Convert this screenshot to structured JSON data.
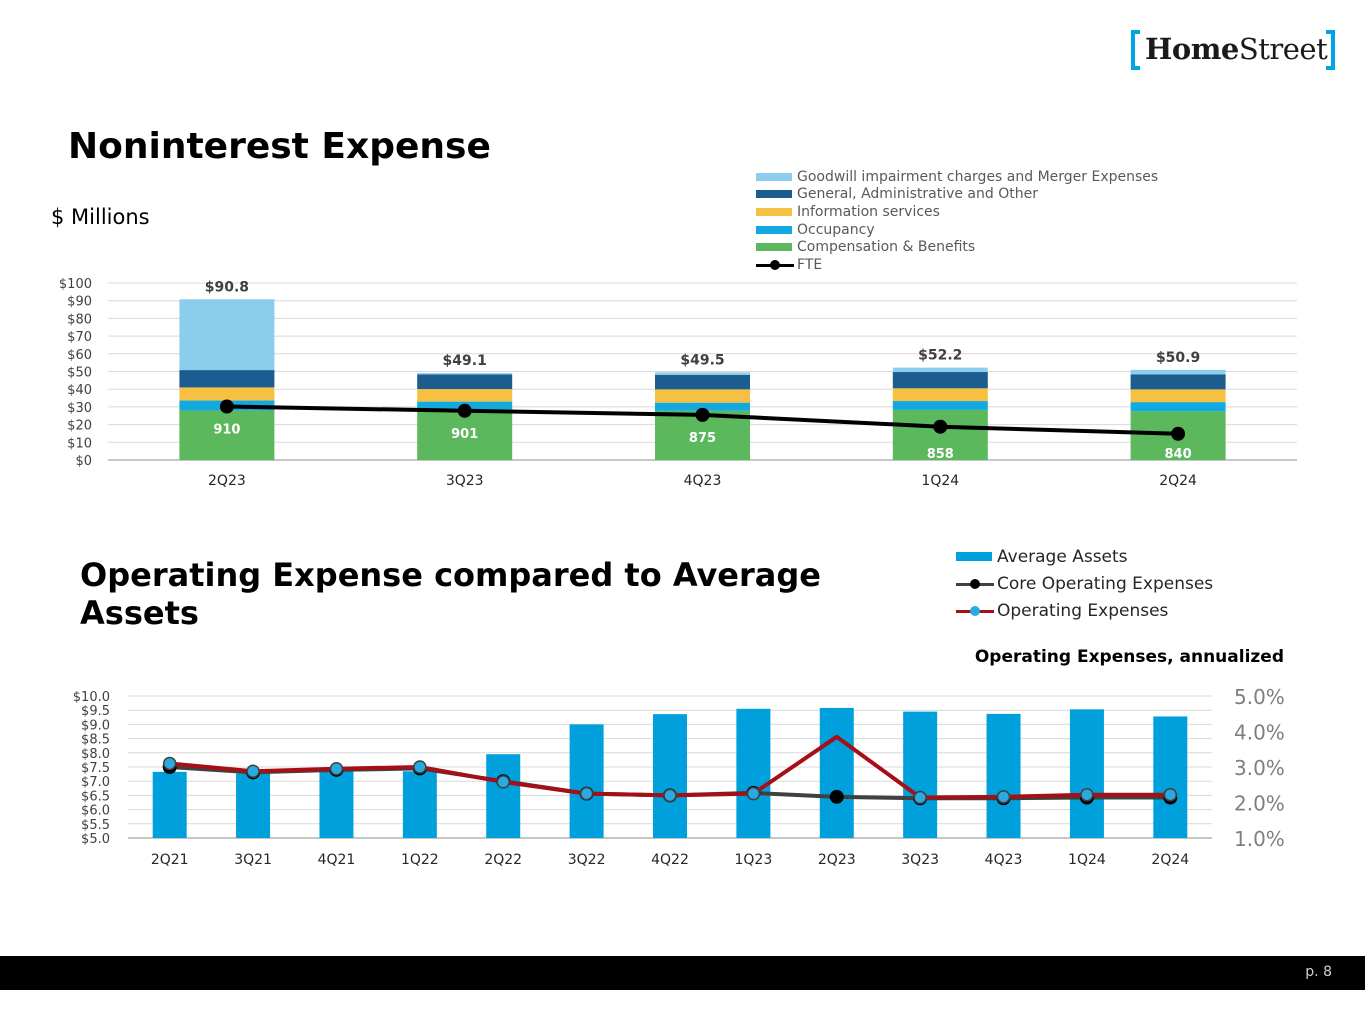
{
  "brand": {
    "logo_text_bold": "Home",
    "logo_text_regular": "Street",
    "accent_color": "#00a5e3"
  },
  "slide": {
    "title": "Noninterest Expense",
    "units": "$ Millions",
    "title2": "Operating Expense compared to Average Assets",
    "subtitle2": "Operating Expenses, annualized",
    "page_number": "p. 8"
  },
  "chart_data": [
    {
      "type": "bar",
      "stacked": true,
      "title": "Noninterest Expense",
      "ylabel": "$ Millions",
      "ylim": [
        0,
        100
      ],
      "yticks": [
        0,
        10,
        20,
        30,
        40,
        50,
        60,
        70,
        80,
        90,
        100
      ],
      "ytick_labels": [
        "$0",
        "$10",
        "$20",
        "$30",
        "$40",
        "$50",
        "$60",
        "$70",
        "$80",
        "$90",
        "$100"
      ],
      "categories": [
        "2Q23",
        "3Q23",
        "4Q23",
        "1Q24",
        "2Q24"
      ],
      "totals": [
        90.8,
        49.1,
        49.5,
        52.2,
        50.9
      ],
      "total_labels": [
        "$90.8",
        "$49.1",
        "$49.5",
        "$52.2",
        "$50.9"
      ],
      "series": [
        {
          "name": "Compensation & Benefits",
          "color": "#5cb85c",
          "values": [
            28.0,
            28.8,
            27.8,
            28.3,
            27.5
          ]
        },
        {
          "name": "Occupancy",
          "color": "#11a9df",
          "values": [
            5.6,
            4.2,
            4.6,
            5.0,
            5.2
          ]
        },
        {
          "name": "Information services",
          "color": "#f6c143",
          "values": [
            7.4,
            7.1,
            7.5,
            7.2,
            7.2
          ]
        },
        {
          "name": "General, Administrative and Other",
          "color": "#1a5d8e",
          "values": [
            9.8,
            8.2,
            8.2,
            9.2,
            8.5
          ]
        },
        {
          "name": "Goodwill impairment charges and Merger Expenses",
          "color": "#8ccdee",
          "values": [
            40.0,
            0.8,
            1.4,
            2.5,
            2.5
          ]
        }
      ],
      "legend_order": [
        "Goodwill impairment charges and Merger Expenses",
        "General, Administrative and Other",
        "Information services",
        "Occupancy",
        "Compensation & Benefits",
        "FTE"
      ],
      "line": {
        "name": "FTE",
        "color": "#000000",
        "values": [
          910,
          901,
          875,
          858,
          840
        ],
        "labels": [
          "910",
          "901",
          "875",
          "858",
          "840"
        ],
        "plot_y_values": [
          30.2,
          27.8,
          25.5,
          18.8,
          14.8
        ]
      }
    },
    {
      "type": "bar",
      "combo": true,
      "categories": [
        "2Q21",
        "3Q21",
        "4Q21",
        "1Q22",
        "2Q22",
        "3Q22",
        "4Q22",
        "1Q23",
        "2Q23",
        "3Q23",
        "4Q23",
        "1Q24",
        "2Q24"
      ],
      "y_left": {
        "ylim": [
          5.0,
          10.0
        ],
        "ticks": [
          "$5.0",
          "$5.5",
          "$6.0",
          "$6.5",
          "$7.0",
          "$7.5",
          "$8.0",
          "$8.5",
          "$9.0",
          "$9.5",
          "$10.0"
        ]
      },
      "y_right": {
        "ylim": [
          1.0,
          5.0
        ],
        "ticks": [
          "1.0%",
          "2.0%",
          "3.0%",
          "4.0%",
          "5.0%"
        ]
      },
      "bars": {
        "name": "Average Assets",
        "color": "#00a0dd",
        "values": [
          7.33,
          7.27,
          7.35,
          7.35,
          7.95,
          9.0,
          9.36,
          9.55,
          9.58,
          9.45,
          9.37,
          9.53,
          9.28
        ]
      },
      "lines": [
        {
          "name": "Core Operating Expenses",
          "color": "#404040",
          "marker": "#000000",
          "values": [
            3.0,
            2.85,
            2.92,
            2.96,
            2.6,
            2.25,
            2.2,
            2.27,
            2.16,
            2.12,
            2.12,
            2.14,
            2.14
          ]
        },
        {
          "name": "Operating Expenses",
          "color": "#a50f15",
          "marker": "#29abe2",
          "values": [
            3.1,
            2.88,
            2.95,
            3.0,
            2.58,
            2.25,
            2.2,
            2.25,
            3.85,
            2.14,
            2.16,
            2.22,
            2.22
          ]
        }
      ],
      "subtitle": "Operating Expenses, annualized"
    }
  ]
}
